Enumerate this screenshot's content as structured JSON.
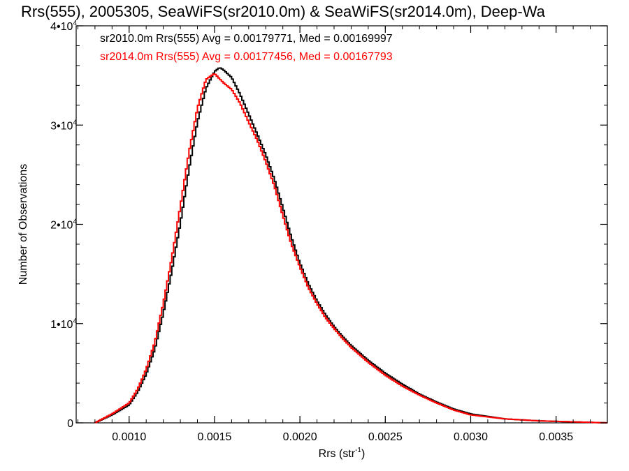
{
  "chart_data": {
    "type": "line",
    "title": "Rrs(555), 2005305, SeaWiFS(sr2010.0m) & SeaWiFS(sr2014.0m), Deep-Wa",
    "xlabel": {
      "main": "Rrs (str",
      "sup": "-1",
      "end": ")"
    },
    "ylabel": "Number of Observations",
    "xlim": [
      0.00069,
      0.0038
    ],
    "ylim": [
      0,
      40000
    ],
    "x_ticks": [
      {
        "value": 0.001,
        "label": "0.0010"
      },
      {
        "value": 0.0015,
        "label": "0.0015"
      },
      {
        "value": 0.002,
        "label": "0.0020"
      },
      {
        "value": 0.0025,
        "label": "0.0025"
      },
      {
        "value": 0.003,
        "label": "0.0030"
      },
      {
        "value": 0.0035,
        "label": "0.0035"
      }
    ],
    "y_ticks": [
      {
        "value": 0,
        "label": "0",
        "sup": ""
      },
      {
        "value": 10000,
        "label": "1•10",
        "sup": "4"
      },
      {
        "value": 20000,
        "label": "2•10",
        "sup": "4"
      },
      {
        "value": 30000,
        "label": "3•10",
        "sup": "4"
      },
      {
        "value": 40000,
        "label": "4•10",
        "sup": "4"
      }
    ],
    "legend_position": "top-left",
    "series": [
      {
        "name": "sr2010.0m Rrs(555) Avg = 0.00179771, Med = 0.00169997",
        "color": "#000000",
        "x": [
          0.0008,
          0.0009,
          0.001,
          0.00105,
          0.0011,
          0.00115,
          0.0012,
          0.00125,
          0.0013,
          0.00135,
          0.0014,
          0.00145,
          0.0015,
          0.00153,
          0.00155,
          0.0016,
          0.00165,
          0.0017,
          0.00175,
          0.0018,
          0.00185,
          0.0019,
          0.00195,
          0.002,
          0.00205,
          0.0021,
          0.00215,
          0.0022,
          0.00225,
          0.0023,
          0.0024,
          0.0025,
          0.0026,
          0.0027,
          0.0028,
          0.0029,
          0.003,
          0.0032,
          0.0034,
          0.0036,
          0.0038
        ],
        "y": [
          0,
          800,
          1800,
          3100,
          4900,
          7400,
          11000,
          15300,
          20100,
          25500,
          30300,
          33700,
          35400,
          35800,
          35600,
          34800,
          33100,
          31100,
          29100,
          27000,
          24600,
          21700,
          18700,
          16100,
          14000,
          12300,
          10900,
          9700,
          8700,
          7800,
          6300,
          5000,
          3900,
          2900,
          2100,
          1400,
          900,
          400,
          200,
          100,
          0
        ]
      },
      {
        "name": "sr2014.0m Rrs(555) Avg = 0.00177456, Med = 0.00167793",
        "color": "#ff0000",
        "x": [
          0.0008,
          0.0009,
          0.001,
          0.00105,
          0.0011,
          0.00115,
          0.0012,
          0.00125,
          0.0013,
          0.00135,
          0.0014,
          0.00145,
          0.0015,
          0.00155,
          0.0016,
          0.00165,
          0.0017,
          0.00175,
          0.0018,
          0.00185,
          0.0019,
          0.00195,
          0.002,
          0.00205,
          0.0021,
          0.00215,
          0.0022,
          0.00225,
          0.0023,
          0.0024,
          0.0025,
          0.0026,
          0.0027,
          0.0028,
          0.0029,
          0.003,
          0.0032,
          0.0034,
          0.0036,
          0.0038
        ],
        "y": [
          0,
          900,
          2000,
          3400,
          5400,
          8100,
          12000,
          16600,
          21800,
          27200,
          31700,
          34600,
          35200,
          34300,
          33600,
          32200,
          30300,
          28500,
          26300,
          23900,
          20900,
          18000,
          15700,
          13600,
          12000,
          10600,
          9500,
          8500,
          7600,
          6100,
          4800,
          3700,
          2800,
          2000,
          1300,
          800,
          400,
          200,
          100,
          0
        ]
      }
    ]
  }
}
